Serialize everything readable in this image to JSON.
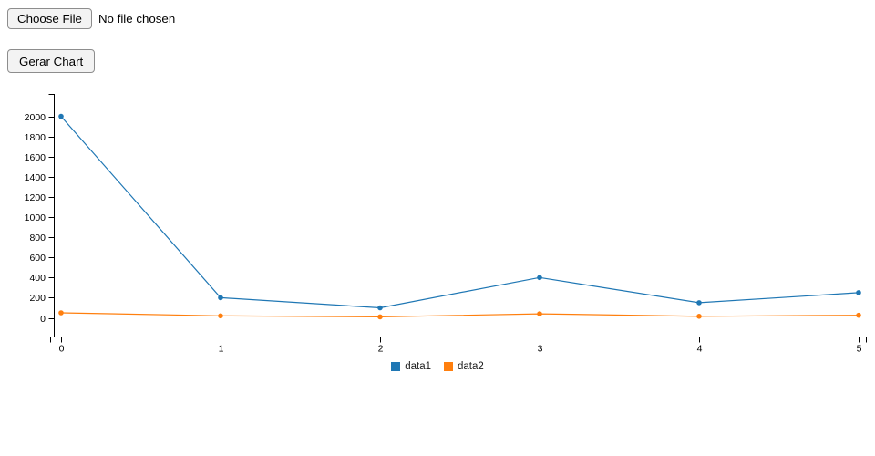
{
  "file_input": {
    "button_label": "Choose File",
    "status_text": "No file chosen"
  },
  "controls": {
    "generate_button_label": "Gerar Chart"
  },
  "chart_data": {
    "type": "line",
    "x": [
      0,
      1,
      2,
      3,
      4,
      5
    ],
    "x_tick_labels": [
      "0",
      "1",
      "2",
      "3",
      "4",
      "5"
    ],
    "series": [
      {
        "name": "data1",
        "color": "#1f77b4",
        "values": [
          2000,
          200,
          100,
          400,
          150,
          250
        ]
      },
      {
        "name": "data2",
        "color": "#ff7f0e",
        "values": [
          50,
          20,
          10,
          40,
          15,
          25
        ]
      }
    ],
    "y_ticks": [
      0,
      200,
      400,
      600,
      800,
      1000,
      1200,
      1400,
      1600,
      1800,
      2000
    ],
    "ylim": [
      0,
      2000
    ],
    "xlim": [
      0,
      5
    ],
    "grid": false,
    "legend_position": "bottom",
    "legend_entries": [
      "data1",
      "data2"
    ],
    "axis_color": "#000000",
    "title": "",
    "xlabel": "",
    "ylabel": ""
  }
}
